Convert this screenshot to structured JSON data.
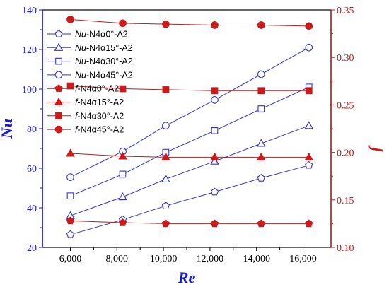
{
  "chart_data": {
    "type": "line",
    "x": [
      6000,
      8250,
      10100,
      12200,
      14200,
      16250
    ],
    "xlabel": "Re",
    "ylabel_left": "Nu",
    "ylabel_right": "f",
    "xlim": [
      4800,
      17200
    ],
    "ylim_left": [
      20,
      140
    ],
    "ylim_right": [
      0.1,
      0.35
    ],
    "x_ticks": [
      "6,000",
      "8,000",
      "10,000",
      "12,000",
      "14,000",
      "16,000"
    ],
    "x_tick_values": [
      6000,
      8000,
      10000,
      12000,
      14000,
      16000
    ],
    "y_left_ticks": [
      "20",
      "40",
      "60",
      "80",
      "100",
      "120",
      "140"
    ],
    "y_left_tick_values": [
      20,
      40,
      60,
      80,
      100,
      120,
      140
    ],
    "y_right_ticks": [
      "0.10",
      "0.15",
      "0.20",
      "0.25",
      "0.30",
      "0.35"
    ],
    "y_right_tick_values": [
      0.1,
      0.15,
      0.2,
      0.25,
      0.3,
      0.35
    ],
    "grid": false,
    "legend_position": "top-left",
    "colors": {
      "left_axis": "#1a1ad6",
      "right_axis": "#cc1a1a",
      "nu_line": "#3333cc",
      "f_line": "#aa2222"
    },
    "series": [
      {
        "name_prefix": "Nu",
        "name_suffix": "-N4α0°-A2",
        "axis": "left",
        "marker": "pentagon",
        "values": [
          26.5,
          34,
          41,
          48,
          55,
          61.5
        ]
      },
      {
        "name_prefix": "Nu",
        "name_suffix": "-N4α15°-A2",
        "axis": "left",
        "marker": "triangle",
        "values": [
          36,
          45.5,
          54.5,
          63.5,
          72.5,
          81.5
        ]
      },
      {
        "name_prefix": "Nu",
        "name_suffix": "-N4α30°-A2",
        "axis": "left",
        "marker": "square",
        "values": [
          46,
          57,
          68,
          79,
          90,
          101
        ]
      },
      {
        "name_prefix": "Nu",
        "name_suffix": "-N4α45°-A2",
        "axis": "left",
        "marker": "circle",
        "values": [
          55.5,
          68.5,
          81.5,
          94.5,
          107.5,
          121
        ]
      },
      {
        "name_prefix": "f",
        "name_suffix": "-N4α0°-A2",
        "axis": "right",
        "marker": "pentagon-filled",
        "values": [
          0.128,
          0.126,
          0.125,
          0.125,
          0.125,
          0.125
        ]
      },
      {
        "name_prefix": "f",
        "name_suffix": "-N4α15°-A2",
        "axis": "right",
        "marker": "triangle-filled",
        "values": [
          0.199,
          0.196,
          0.195,
          0.195,
          0.195,
          0.195
        ]
      },
      {
        "name_prefix": "f",
        "name_suffix": "-N4α30°-A2",
        "axis": "right",
        "marker": "square-filled",
        "values": [
          0.27,
          0.267,
          0.266,
          0.265,
          0.265,
          0.265
        ]
      },
      {
        "name_prefix": "f",
        "name_suffix": "-N4α45°-A2",
        "axis": "right",
        "marker": "circle-filled",
        "values": [
          0.34,
          0.336,
          0.335,
          0.334,
          0.334,
          0.333
        ]
      }
    ]
  }
}
